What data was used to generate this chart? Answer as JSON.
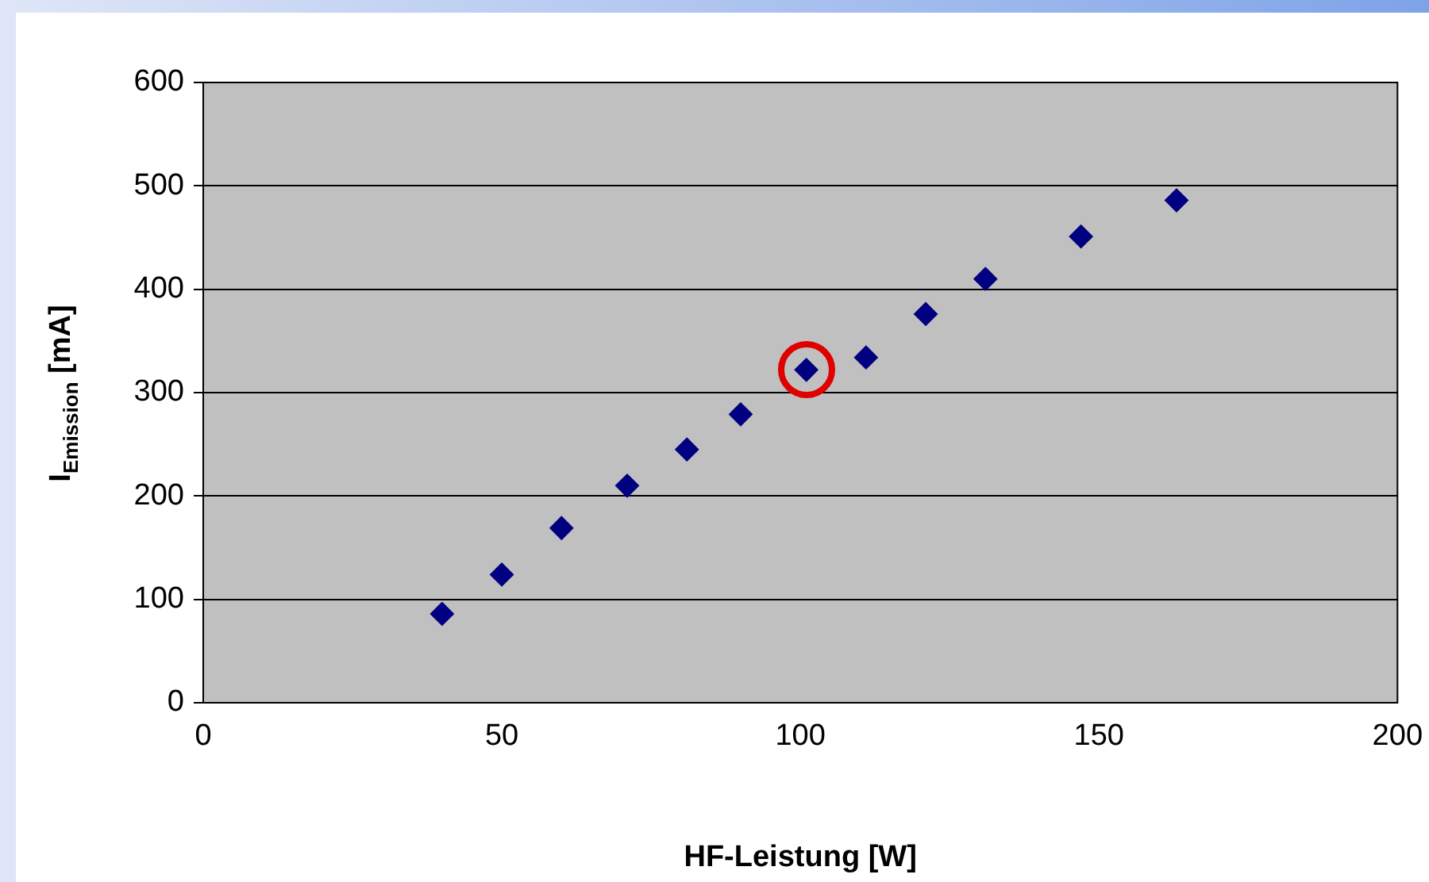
{
  "chart_data": {
    "type": "scatter",
    "xlabel": "HF-Leistung [W]",
    "ylabel": "I$_{Emission}$ [mA]",
    "x": [
      40,
      50,
      60,
      71,
      81,
      90,
      101,
      111,
      121,
      131,
      147,
      163
    ],
    "series": [
      {
        "color": "#000080",
        "values": [
          86,
          124,
          169,
          210,
          245,
          279,
          322,
          334,
          376,
          410,
          451,
          486
        ]
      }
    ],
    "xlim": [
      0,
      200
    ],
    "xticks": [
      0,
      50,
      100,
      150,
      200
    ],
    "ylim": [
      0,
      600
    ],
    "yticks": [
      0,
      100,
      200,
      300,
      400,
      500,
      600
    ],
    "grid": "y",
    "legend": false,
    "marker": "diamond"
  }
}
